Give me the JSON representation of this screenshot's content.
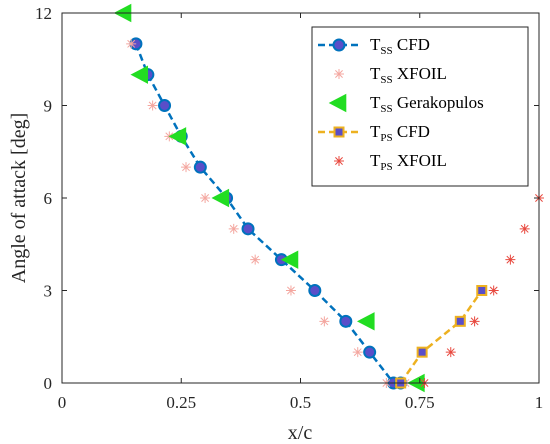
{
  "chart_data": {
    "type": "scatter",
    "xlabel": "x/c",
    "ylabel": "Angle of attack [deg]",
    "xlim": [
      0,
      1
    ],
    "ylim": [
      0,
      12
    ],
    "xticks": [
      0,
      0.25,
      0.5,
      0.75,
      1
    ],
    "xtick_labels": [
      "0",
      "0.25",
      "0.5",
      "0.75",
      "1"
    ],
    "yticks": [
      0,
      3,
      6,
      9,
      12
    ],
    "ytick_labels": [
      "0",
      "3",
      "6",
      "9",
      "12"
    ],
    "legend_position": "top-right",
    "series": [
      {
        "key": "tss-cfd",
        "name_main": "T",
        "name_sub": "SS",
        "name_rest": "CFD",
        "style": "dashed-line-circle",
        "color": "#0072BD",
        "marker_face": "#5A4EC8",
        "x": [
          0.155,
          0.18,
          0.215,
          0.25,
          0.29,
          0.345,
          0.39,
          0.46,
          0.53,
          0.595,
          0.645,
          0.695,
          0.71
        ],
        "y": [
          11,
          10,
          9,
          8,
          7,
          6,
          5,
          4,
          3,
          2,
          1,
          0,
          0
        ]
      },
      {
        "key": "tss-xfoil",
        "name_main": "T",
        "name_sub": "SS",
        "name_rest": "XFOIL",
        "style": "asterisk",
        "color": "#F4A7A0",
        "x": [
          0.145,
          0.19,
          0.225,
          0.26,
          0.3,
          0.36,
          0.405,
          0.48,
          0.55,
          0.62,
          0.68,
          0.72
        ],
        "y": [
          11,
          9,
          8,
          7,
          6,
          5,
          4,
          3,
          2,
          1,
          0,
          0
        ]
      },
      {
        "key": "tss-gerakopulos",
        "name_main": "T",
        "name_sub": "SS",
        "name_rest": "Gerakopulos",
        "style": "triangle-left",
        "color": "#22DD22",
        "x": [
          0.13,
          0.165,
          0.245,
          0.335,
          0.48,
          0.64,
          0.745
        ],
        "y": [
          12,
          10,
          8,
          6,
          4,
          2,
          0
        ]
      },
      {
        "key": "tps-cfd",
        "name_main": "T",
        "name_sub": "PS",
        "name_rest": "CFD",
        "style": "dashed-line-square",
        "color": "#EDB120",
        "marker_face": "#5A4EC8",
        "x": [
          0.71,
          0.755,
          0.835,
          0.88
        ],
        "y": [
          0,
          1,
          2,
          3
        ]
      },
      {
        "key": "tps-xfoil",
        "name_main": "T",
        "name_sub": "PS",
        "name_rest": "XFOIL",
        "style": "asterisk",
        "color": "#E8493F",
        "x": [
          0.76,
          0.815,
          0.865,
          0.905,
          0.94,
          0.97,
          1.0
        ],
        "y": [
          0,
          1,
          2,
          3,
          4,
          5,
          6
        ]
      }
    ]
  }
}
